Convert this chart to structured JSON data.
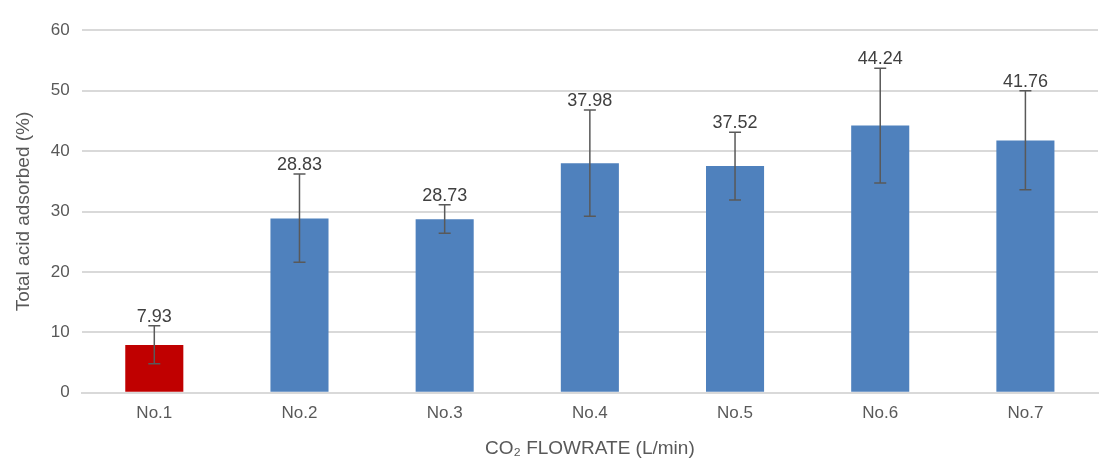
{
  "chart_data": {
    "type": "bar",
    "xlabel": "CO₂ FLOWRATE (L/min)",
    "ylabel": "Total acid adsorbed (%)",
    "categories": [
      "No.1",
      "No.2",
      "No.3",
      "No.4",
      "No.5",
      "No.6",
      "No.7"
    ],
    "values": [
      7.93,
      28.83,
      28.73,
      37.98,
      37.52,
      44.24,
      41.76
    ],
    "colors": [
      "#c00000",
      "#4f81bd",
      "#4f81bd",
      "#4f81bd",
      "#4f81bd",
      "#4f81bd",
      "#4f81bd"
    ],
    "errors": [
      [
        4.8,
        11.1
      ],
      [
        21.6,
        36.2
      ],
      [
        26.4,
        31.1
      ],
      [
        29.2,
        46.8
      ],
      [
        31.9,
        43.1
      ],
      [
        34.7,
        53.7
      ],
      [
        33.6,
        50.0
      ]
    ],
    "ylim": [
      0,
      60
    ],
    "yticks": [
      0,
      10,
      20,
      30,
      40,
      50,
      60
    ],
    "grid": "y",
    "data_labels": true
  }
}
